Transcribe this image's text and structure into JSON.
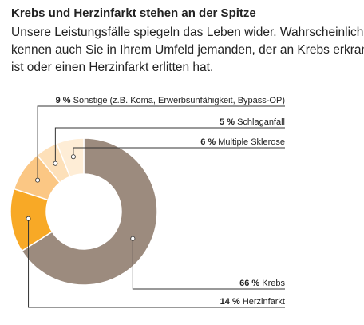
{
  "chart_data": {
    "type": "donut",
    "title": "Krebs und Herzinfarkt stehen an der Spitze",
    "text_lines": [
      "Unsere Leistungsfälle spiegeln das Leben wider. Wahrscheinlich",
      "kennen auch Sie in Ihrem Umfeld jemanden, der an Krebs erkrankt",
      "ist oder einen Herzinfarkt erlitten hat."
    ],
    "categories": [
      "Krebs",
      "Herzinfarkt",
      "Sonstige (z.B. Koma, Erwerbsunfähigkeit, Bypass-OP)",
      "Schlaganfall",
      "Multiple Sklerose"
    ],
    "values": [
      66,
      14,
      9,
      5,
      6
    ],
    "value_labels": [
      "66 %",
      "14 %",
      "9 %",
      "5 %",
      "6 %"
    ],
    "colors": [
      "#9c8b7e",
      "#f8a926",
      "#fbc784",
      "#fde0b9",
      "#feedd6"
    ]
  }
}
